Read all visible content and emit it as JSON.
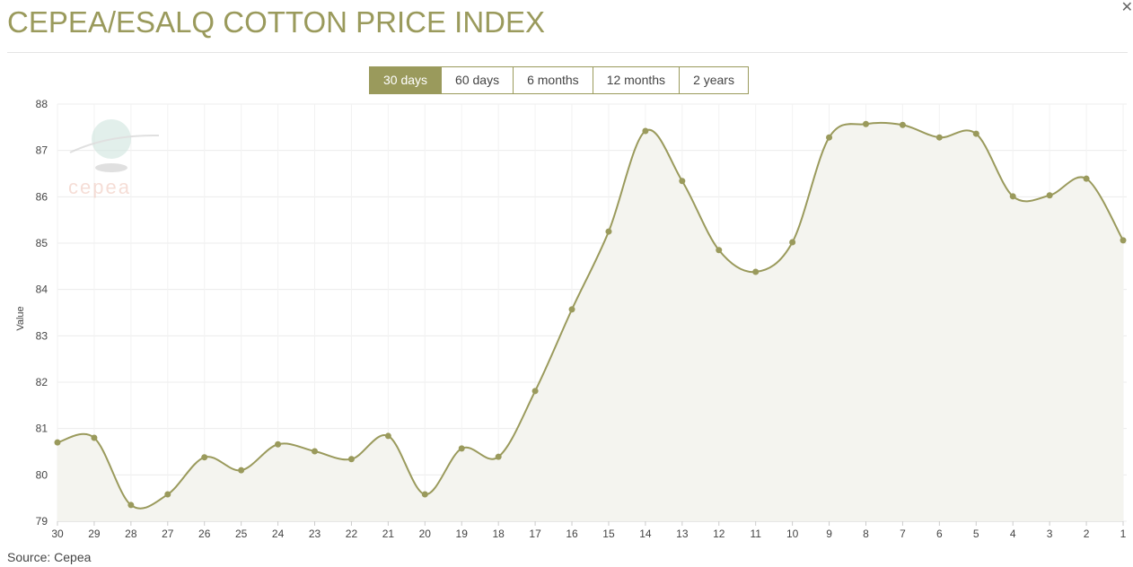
{
  "header": {
    "title": "CEPEA/ESALQ COTTON PRICE INDEX",
    "close_icon": "close-icon"
  },
  "range_buttons": [
    {
      "label": "30 days",
      "active": true
    },
    {
      "label": "60 days"
    },
    {
      "label": "6 months"
    },
    {
      "label": "12 months"
    },
    {
      "label": "2 years"
    }
  ],
  "source": "Source: Cepea",
  "logo_text": "cepea",
  "colors": {
    "accent": "#9a9a5c",
    "area": "#f4f4ef"
  },
  "chart_data": {
    "type": "area",
    "title": "CEPEA/ESALQ COTTON PRICE INDEX",
    "xlabel": "",
    "ylabel": "Value",
    "ylim": [
      79,
      88
    ],
    "yticks": [
      79,
      80,
      81,
      82,
      83,
      84,
      85,
      86,
      87,
      88
    ],
    "grid": true,
    "categories": [
      "30",
      "29",
      "28",
      "27",
      "26",
      "25",
      "24",
      "23",
      "22",
      "21",
      "20",
      "19",
      "18",
      "17",
      "16",
      "15",
      "14",
      "13",
      "12",
      "11",
      "10",
      "9",
      "8",
      "7",
      "6",
      "5",
      "4",
      "3",
      "2",
      "1"
    ],
    "values": [
      80.7,
      80.8,
      79.35,
      79.58,
      80.38,
      80.1,
      80.66,
      80.51,
      80.34,
      80.84,
      79.58,
      80.57,
      80.39,
      81.81,
      83.57,
      85.25,
      87.42,
      86.34,
      84.85,
      84.38,
      85.02,
      87.28,
      87.57,
      87.55,
      87.28,
      87.36,
      86.01,
      86.03,
      86.39,
      85.06
    ]
  }
}
